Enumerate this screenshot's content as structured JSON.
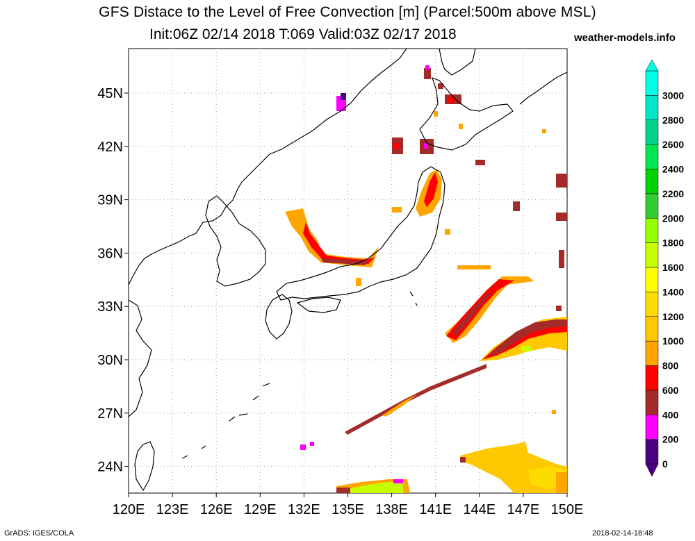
{
  "title": {
    "line1": "GFS Distace to the Level of Free Convection [m] (Parcel:500m above MSL)",
    "line2": "Init:06Z 02/14 2018 T:069 Valid:03Z 02/17 2018",
    "site": "weather-models.info"
  },
  "footer": {
    "left": "GrADS: IGES/COLA",
    "right": "2018-02-14-18:48"
  },
  "map": {
    "lon_range": [
      120,
      150
    ],
    "lat_range": [
      22.5,
      47.5
    ],
    "lon_ticks": [
      "120E",
      "123E",
      "126E",
      "129E",
      "132E",
      "135E",
      "138E",
      "141E",
      "144E",
      "147E",
      "150E"
    ],
    "lat_ticks": [
      "24N",
      "27N",
      "30N",
      "33N",
      "36N",
      "39N",
      "42N",
      "45N"
    ],
    "grid": "dotted"
  },
  "colorbar": {
    "levels": [
      "0",
      "200",
      "400",
      "600",
      "800",
      "1000",
      "1200",
      "1400",
      "1600",
      "1800",
      "2000",
      "2200",
      "2400",
      "2600",
      "2800",
      "3000"
    ],
    "colors": [
      "#4b0082",
      "#ff00ff",
      "#a52a2a",
      "#ff0000",
      "#ffa500",
      "#ffc800",
      "#ffdc00",
      "#ffff00",
      "#c8ff00",
      "#96ff00",
      "#32cd32",
      "#00d200",
      "#00e650",
      "#00d28c",
      "#00e6c8",
      "#00ffe6"
    ]
  }
}
